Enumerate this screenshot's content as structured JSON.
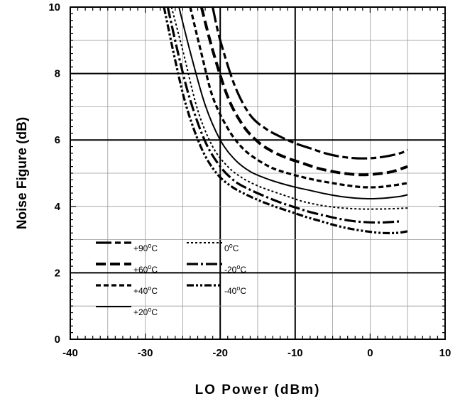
{
  "chart_data": {
    "type": "line",
    "xlabel": "LO Power (dBm)",
    "ylabel": "Noise Figure (dB)",
    "xlim": [
      -40,
      10
    ],
    "ylim": [
      0,
      10
    ],
    "x_ticks": [
      "-40",
      "-30",
      "-20",
      "-10",
      "0",
      "10"
    ],
    "y_ticks": [
      "0",
      "2",
      "4",
      "6",
      "8",
      "10"
    ],
    "grid": "on",
    "legend_placement": "lower-left",
    "series": [
      {
        "name": "+90°C",
        "label_base": "+90",
        "dash": "long-dash",
        "x": [
          -21,
          -20,
          -18,
          -16,
          -14,
          -12,
          -10,
          -8,
          -6,
          -4,
          -2,
          0,
          2,
          4,
          5
        ],
        "y": [
          10,
          9.0,
          7.6,
          6.75,
          6.35,
          6.1,
          5.9,
          5.75,
          5.6,
          5.5,
          5.45,
          5.45,
          5.5,
          5.6,
          5.7
        ]
      },
      {
        "name": "+60°C",
        "label_base": "+60",
        "dash": "dash",
        "x": [
          -22.5,
          -21,
          -19,
          -17,
          -15,
          -13,
          -11,
          -9,
          -7,
          -5,
          -3,
          -1,
          1,
          3,
          5
        ],
        "y": [
          10,
          8.7,
          7.3,
          6.45,
          5.95,
          5.65,
          5.45,
          5.3,
          5.15,
          5.05,
          4.98,
          4.95,
          4.98,
          5.05,
          5.2
        ]
      },
      {
        "name": "+40°C",
        "label_base": "+40",
        "dash": "short-dash",
        "x": [
          -24,
          -22.5,
          -21,
          -19,
          -17,
          -15,
          -13,
          -11,
          -9,
          -7,
          -5,
          -3,
          -1,
          1,
          3,
          5
        ],
        "y": [
          10,
          8.6,
          7.3,
          6.35,
          5.75,
          5.4,
          5.15,
          5.0,
          4.88,
          4.78,
          4.7,
          4.63,
          4.58,
          4.58,
          4.63,
          4.7
        ]
      },
      {
        "name": "+20°C",
        "label_base": "+20",
        "dash": "solid",
        "x": [
          -25.5,
          -24,
          -22,
          -20,
          -18,
          -16,
          -14,
          -12,
          -10,
          -8,
          -6,
          -4,
          -2,
          0,
          2,
          4,
          5
        ],
        "y": [
          10,
          8.65,
          7.05,
          6.0,
          5.4,
          5.05,
          4.85,
          4.7,
          4.58,
          4.48,
          4.38,
          4.3,
          4.25,
          4.23,
          4.25,
          4.3,
          4.35
        ]
      },
      {
        "name": "0°C",
        "label_base": "0",
        "dash": "dot",
        "x": [
          -26.5,
          -25,
          -23,
          -21,
          -19,
          -17,
          -15,
          -13,
          -11,
          -9,
          -7,
          -5,
          -3,
          -1,
          1,
          3,
          5
        ],
        "y": [
          10,
          8.7,
          6.9,
          5.8,
          5.2,
          4.85,
          4.62,
          4.45,
          4.3,
          4.15,
          4.05,
          3.98,
          3.94,
          3.92,
          3.92,
          3.93,
          3.95
        ]
      },
      {
        "name": "-20°C",
        "label_base": "-20",
        "dash": "dash-dot",
        "x": [
          -27,
          -25.5,
          -24,
          -22,
          -20,
          -18,
          -16,
          -14,
          -12,
          -10,
          -8,
          -6,
          -4,
          -2,
          0,
          2,
          4
        ],
        "y": [
          10,
          8.5,
          7.2,
          5.95,
          5.2,
          4.75,
          4.5,
          4.3,
          4.12,
          3.97,
          3.83,
          3.72,
          3.62,
          3.55,
          3.52,
          3.52,
          3.55
        ]
      },
      {
        "name": "-40°C",
        "label_base": "-40",
        "dash": "dash-dot-dot",
        "x": [
          -27.5,
          -26,
          -24.5,
          -22.5,
          -20.5,
          -18.5,
          -16.5,
          -14.5,
          -12.5,
          -10.5,
          -8.5,
          -6.5,
          -4.5,
          -2.5,
          -0.5,
          1.5,
          3.5,
          5
        ],
        "y": [
          10,
          8.4,
          7.0,
          5.75,
          5.0,
          4.6,
          4.35,
          4.15,
          3.98,
          3.83,
          3.68,
          3.55,
          3.42,
          3.32,
          3.25,
          3.2,
          3.2,
          3.25
        ]
      }
    ]
  }
}
